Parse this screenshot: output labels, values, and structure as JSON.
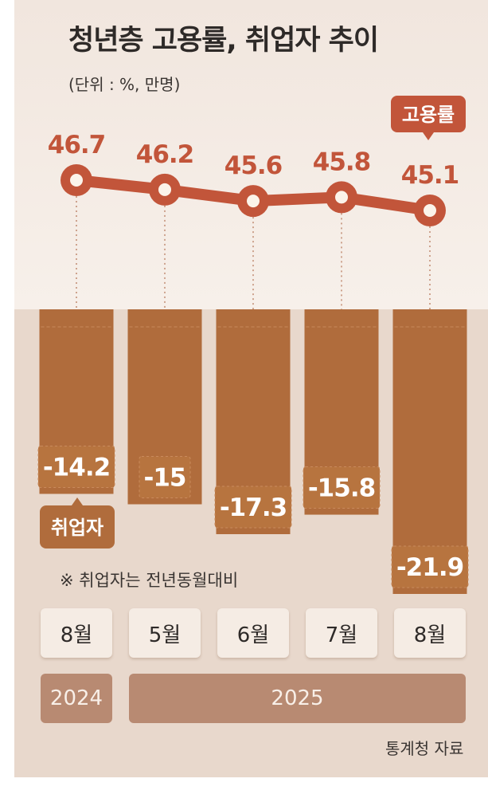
{
  "title": "청년층 고용률, 취업자 추이",
  "unit": "(단위 : %, 만명)",
  "note": "※ 취업자는 전년동월대비",
  "source": "통계청 자료",
  "colors": {
    "line": "#c2553a",
    "bar": "#b06c3c",
    "year_box": "#b88a72",
    "month_box": "#f5ece4"
  },
  "chart_data": {
    "type": "line+bar",
    "categories": [
      "8월",
      "5월",
      "6월",
      "7월",
      "8월"
    ],
    "years": [
      {
        "label": "2024",
        "span": 1
      },
      {
        "label": "2025",
        "span": 4
      }
    ],
    "series": [
      {
        "name": "고용률",
        "type": "line",
        "values": [
          46.7,
          46.2,
          45.6,
          45.8,
          45.1
        ],
        "labels": [
          "46.7",
          "46.2",
          "45.6",
          "45.8",
          "45.1"
        ]
      },
      {
        "name": "취업자",
        "type": "bar",
        "values": [
          -14.2,
          -15,
          -17.3,
          -15.8,
          -21.9
        ],
        "labels": [
          "-14.2",
          "-15",
          "-17.3",
          "-15.8",
          "-21.9"
        ]
      }
    ]
  }
}
